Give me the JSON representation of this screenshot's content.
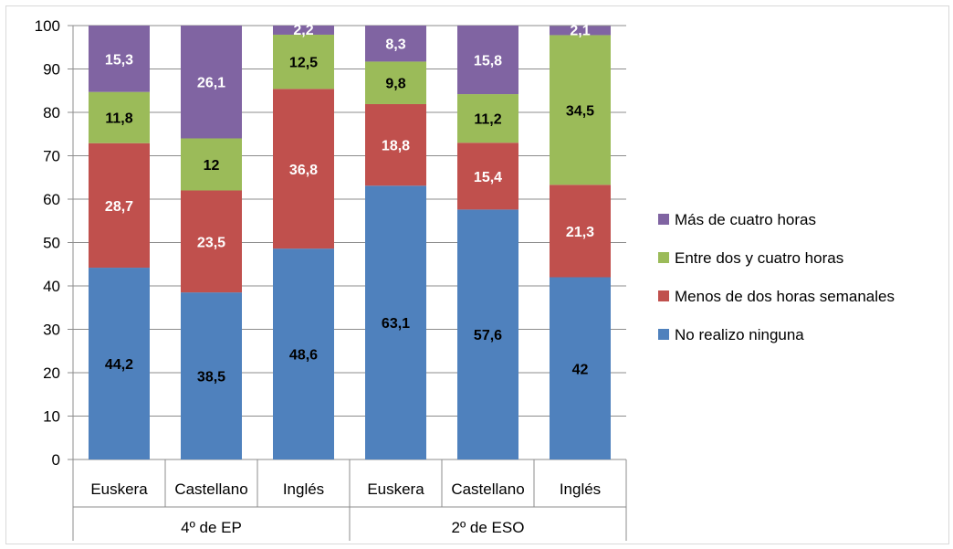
{
  "chart_data": {
    "type": "bar",
    "stacked": true,
    "categories": [
      "Euskera",
      "Castellano",
      "Inglés",
      "Euskera",
      "Castellano",
      "Inglés"
    ],
    "groups": [
      {
        "label": "4º de EP",
        "categories": [
          "Euskera",
          "Castellano",
          "Inglés"
        ]
      },
      {
        "label": "2º de ESO",
        "categories": [
          "Euskera",
          "Castellano",
          "Inglés"
        ]
      }
    ],
    "series": [
      {
        "name": "No realizo ninguna",
        "color": "#4f81bd",
        "label_color": "#000000",
        "values": [
          44.2,
          38.5,
          48.6,
          63.1,
          57.6,
          42
        ],
        "labels": [
          "44,2",
          "38,5",
          "48,6",
          "63,1",
          "57,6",
          "42"
        ]
      },
      {
        "name": "Menos de dos horas semanales",
        "color": "#c0504d",
        "label_color": "#ffffff",
        "values": [
          28.7,
          23.5,
          36.8,
          18.8,
          15.4,
          21.3
        ],
        "labels": [
          "28,7",
          "23,5",
          "36,8",
          "18,8",
          "15,4",
          "21,3"
        ]
      },
      {
        "name": "Entre dos y cuatro horas",
        "color": "#9bbb59",
        "label_color": "#000000",
        "values": [
          11.8,
          12,
          12.5,
          9.8,
          11.2,
          34.5
        ],
        "labels": [
          "11,8",
          "12",
          "12,5",
          "9,8",
          "11,2",
          "34,5"
        ]
      },
      {
        "name": "Más de cuatro horas",
        "color": "#8064a2",
        "label_color": "#ffffff",
        "values": [
          15.3,
          26.1,
          2.2,
          8.3,
          15.8,
          2.1
        ],
        "labels": [
          "15,3",
          "26,1",
          "2,2",
          "8,3",
          "15,8",
          "2,1"
        ]
      }
    ],
    "yticks": [
      "0",
      "10",
      "20",
      "30",
      "40",
      "50",
      "60",
      "70",
      "80",
      "90",
      "100"
    ],
    "ylim": [
      0,
      100
    ],
    "grid": true,
    "legend_position": "right",
    "legend_order": [
      "Más de cuatro horas",
      "Entre dos y cuatro horas",
      "Menos de dos horas semanales",
      "No realizo ninguna"
    ],
    "title": "",
    "xlabel": "",
    "ylabel": ""
  }
}
